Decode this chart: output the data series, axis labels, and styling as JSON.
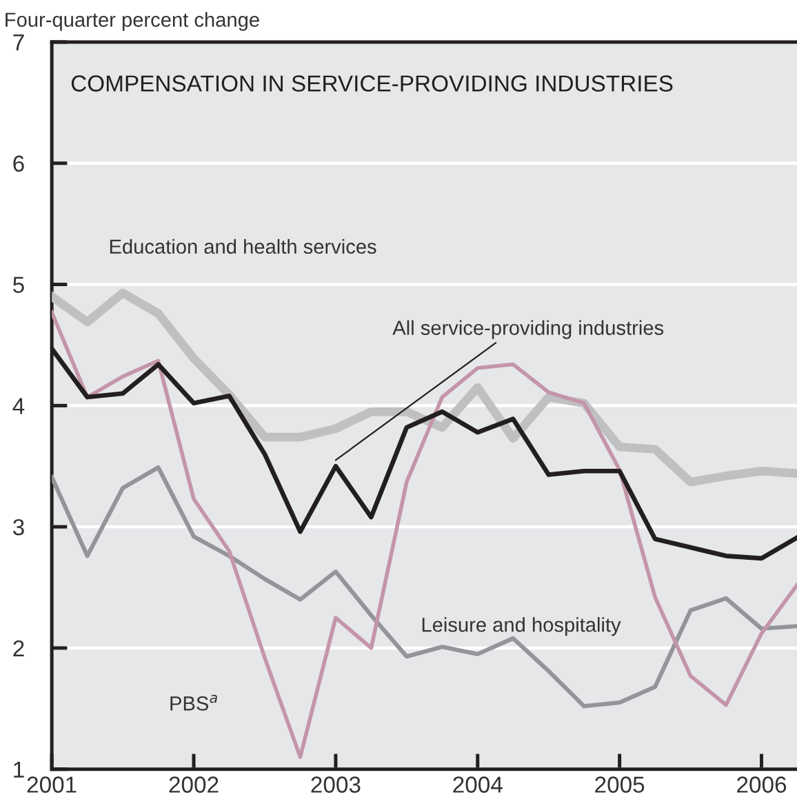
{
  "chart_data": {
    "type": "line",
    "title": "COMPENSATION IN SERVICE-PROVIDING INDUSTRIES",
    "ylabel": "Four-quarter percent change",
    "x": [
      2001,
      2001.25,
      2001.5,
      2001.75,
      2002,
      2002.25,
      2002.5,
      2002.75,
      2003,
      2003.25,
      2003.5,
      2003.75,
      2004,
      2004.25,
      2004.5,
      2004.75,
      2005,
      2005.25,
      2005.5,
      2005.75,
      2006,
      2006.25
    ],
    "series": [
      {
        "name": "Education and health services",
        "color": "#c0c0c2",
        "values": [
          4.9,
          4.69,
          4.93,
          4.76,
          4.39,
          4.09,
          3.74,
          3.74,
          3.81,
          3.95,
          3.95,
          3.82,
          4.15,
          3.73,
          4.07,
          4.02,
          3.66,
          3.64,
          3.37,
          3.42,
          3.46,
          3.44
        ]
      },
      {
        "name": "Leisure and hospitality",
        "color": "#939598",
        "values": [
          3.41,
          2.76,
          3.32,
          3.49,
          2.92,
          2.76,
          2.57,
          2.4,
          2.63,
          2.27,
          1.93,
          2.01,
          1.95,
          2.08,
          1.81,
          1.52,
          1.55,
          1.68,
          2.31,
          2.41,
          2.16,
          2.18
        ]
      },
      {
        "name": "PBS$^{a}$",
        "color": "#c495a9",
        "values": [
          4.77,
          4.07,
          4.24,
          4.37,
          3.23,
          2.8,
          1.92,
          1.1,
          2.25,
          2.0,
          3.37,
          4.07,
          4.31,
          4.34,
          4.11,
          4.02,
          3.47,
          2.42,
          1.77,
          1.53,
          2.12,
          2.52
        ]
      },
      {
        "name": "All service-providing industries",
        "color": "#231f20",
        "values": [
          4.47,
          4.07,
          4.1,
          4.34,
          4.02,
          4.08,
          3.6,
          2.96,
          3.5,
          3.08,
          3.82,
          3.95,
          3.78,
          3.89,
          3.43,
          3.46,
          3.46,
          2.9,
          2.83,
          2.76,
          2.74,
          2.91
        ]
      }
    ],
    "xlim": [
      2001,
      2006.25
    ],
    "xticks": [
      2001,
      2002,
      2003,
      2004,
      2005,
      2006
    ],
    "ylim": [
      1,
      7
    ],
    "yticks": [
      1,
      2,
      3,
      4,
      5,
      6,
      7
    ],
    "grid": "y",
    "legend": false,
    "marker": "none",
    "line_style": "solid"
  }
}
